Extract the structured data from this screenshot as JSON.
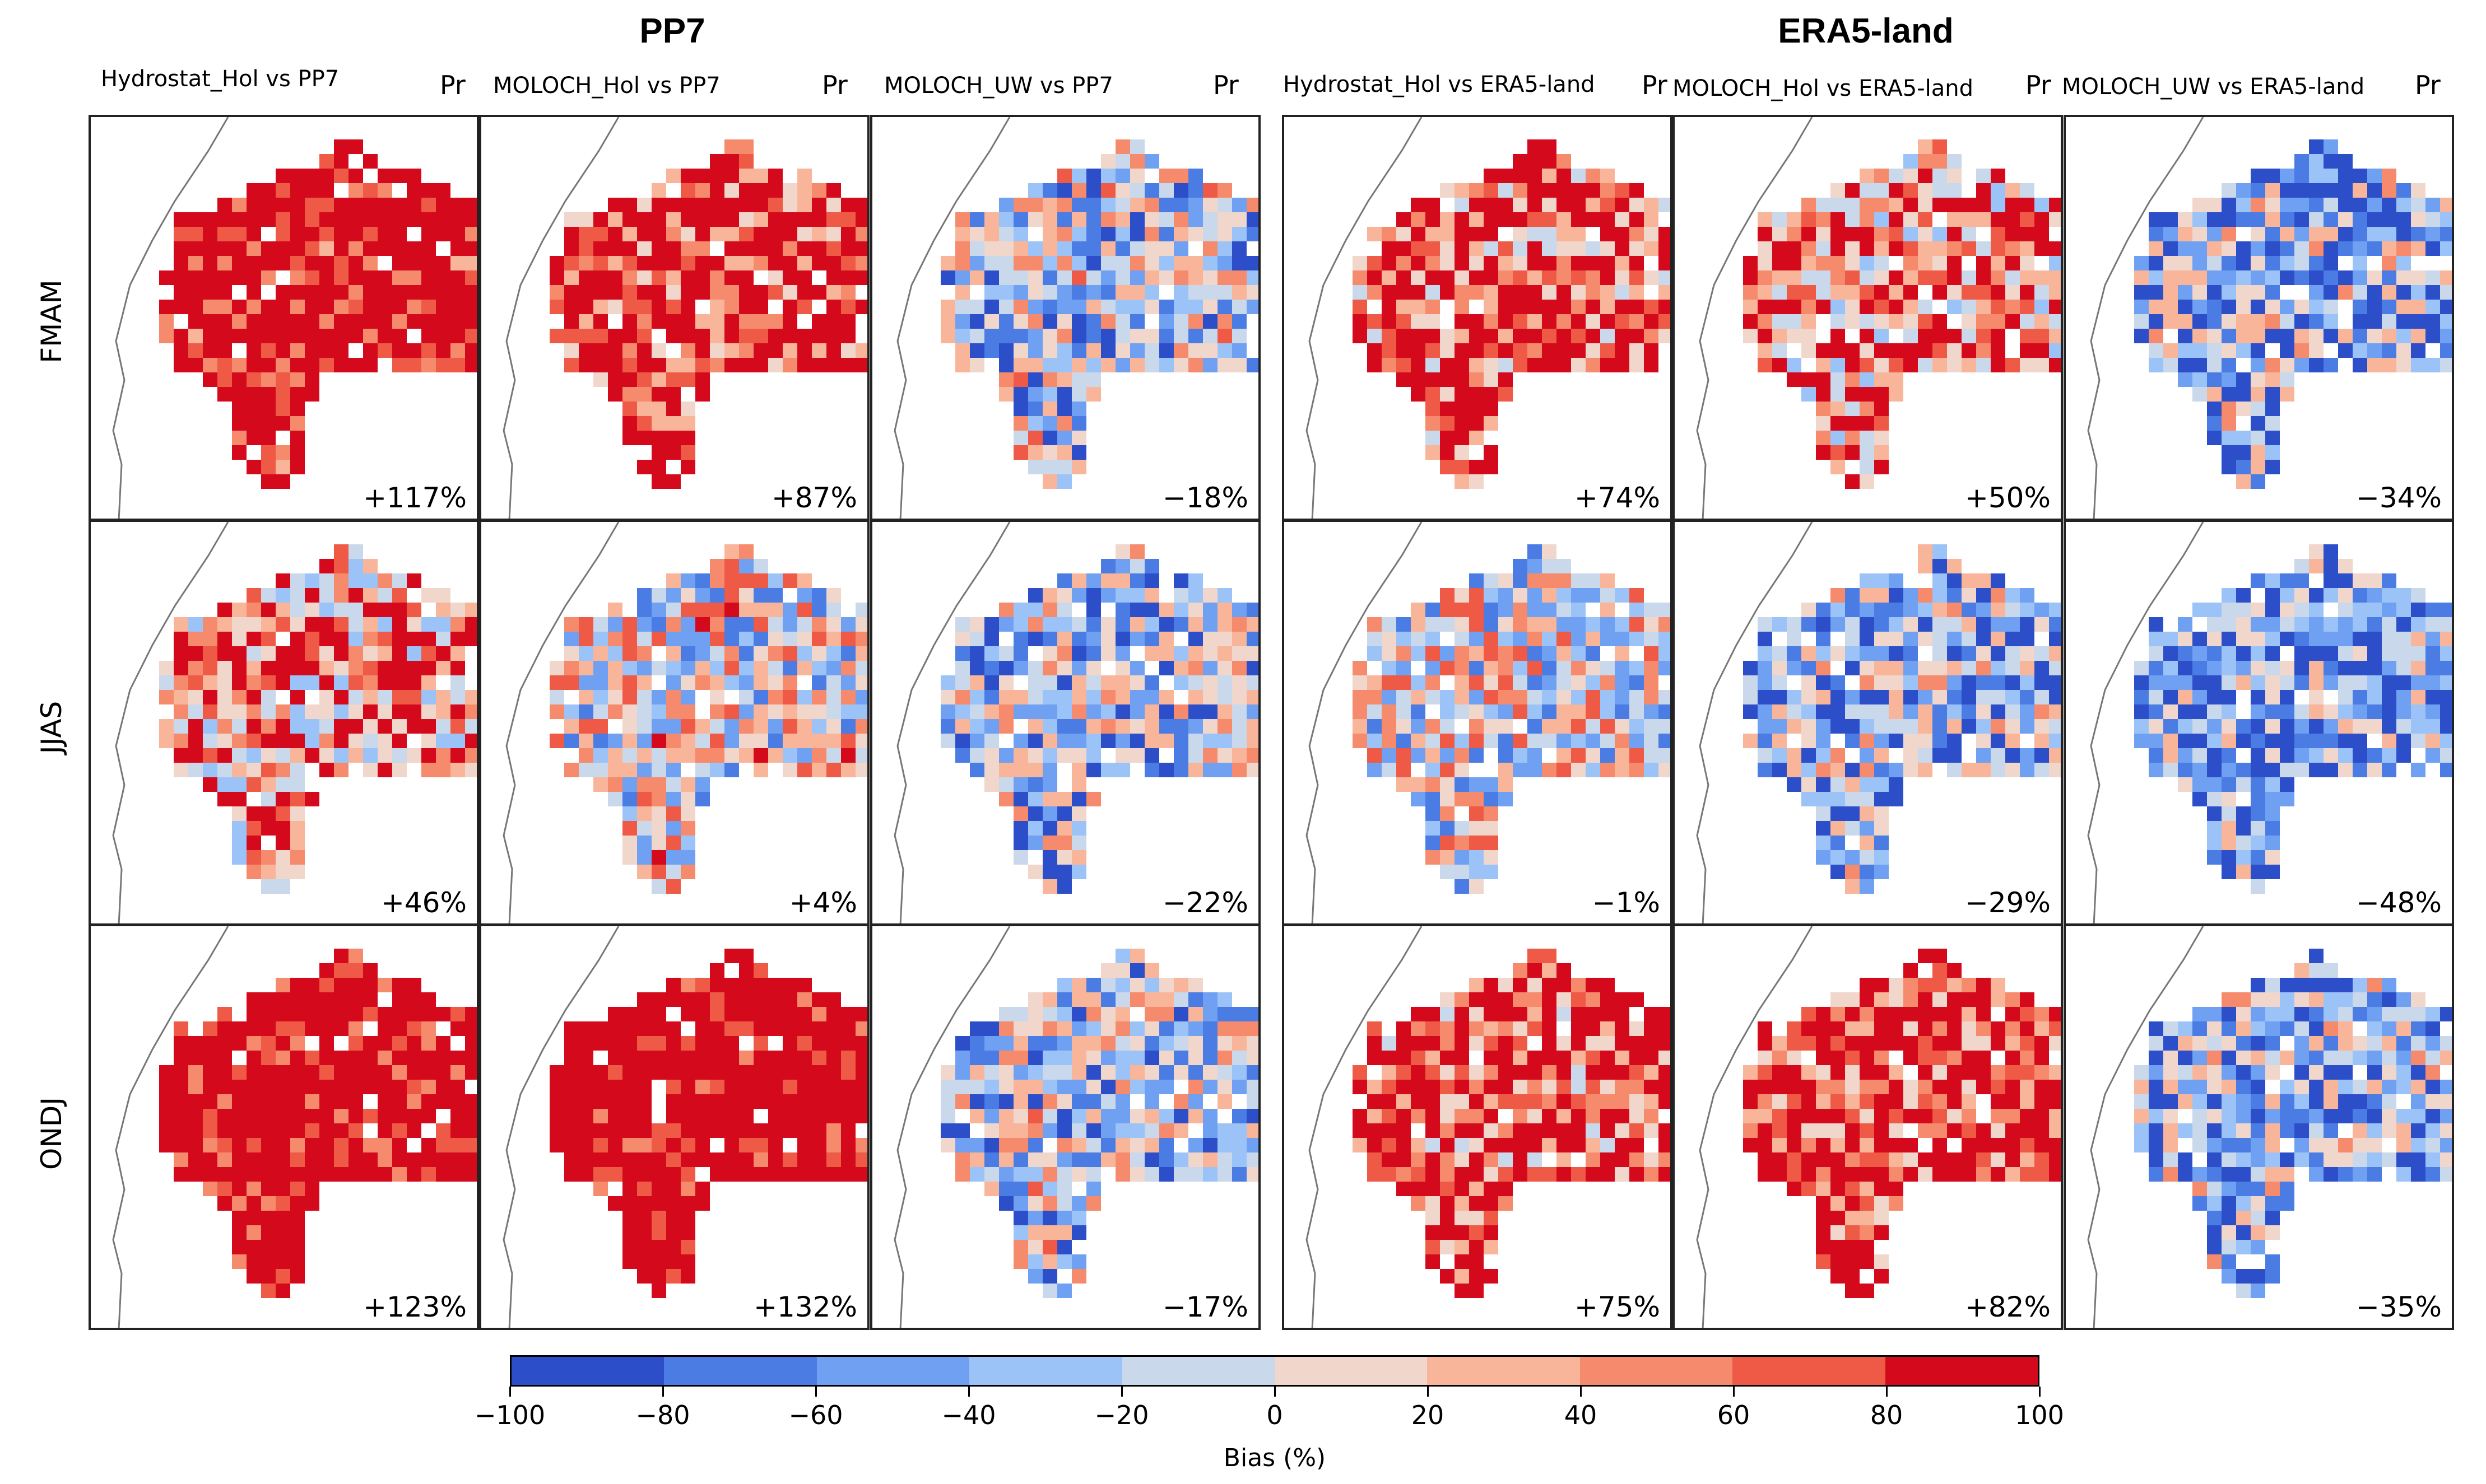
{
  "groups": [
    {
      "title": "PP7"
    },
    {
      "title": "ERA5-land"
    }
  ],
  "columns": [
    {
      "title": "Hydrostat_Hol vs PP7",
      "var": "Pr"
    },
    {
      "title": "MOLOCH_Hol vs PP7",
      "var": "Pr"
    },
    {
      "title": "MOLOCH_UW vs PP7",
      "var": "Pr"
    },
    {
      "title": "Hydrostat_Hol vs ERA5-land",
      "var": "Pr"
    },
    {
      "title": "MOLOCH_Hol vs ERA5-land",
      "var": "Pr"
    },
    {
      "title": "MOLOCH_UW vs ERA5-land",
      "var": "Pr"
    }
  ],
  "rows": [
    "FMAM",
    "JJAS",
    "ONDJ"
  ],
  "bias_values": [
    [
      "+117%",
      "+87%",
      "−18%",
      "+74%",
      "+50%",
      "−34%"
    ],
    [
      "+46%",
      "+4%",
      "−22%",
      "−1%",
      "−29%",
      "−48%"
    ],
    [
      "+123%",
      "+132%",
      "−17%",
      "+75%",
      "+82%",
      "−35%"
    ]
  ],
  "colorbar": {
    "label": "Bias (%)",
    "ticks": [
      "−100",
      "−80",
      "−60",
      "−40",
      "−20",
      "0",
      "20",
      "40",
      "60",
      "80",
      "100"
    ],
    "range": [
      -100,
      100
    ],
    "colors": [
      "#2c4fc9",
      "#4a7ce3",
      "#6fa0f2",
      "#9cc3f7",
      "#c9d8ea",
      "#f1d6cb",
      "#f9b59a",
      "#f58b6c",
      "#ee5a45",
      "#d40a1c"
    ]
  }
}
